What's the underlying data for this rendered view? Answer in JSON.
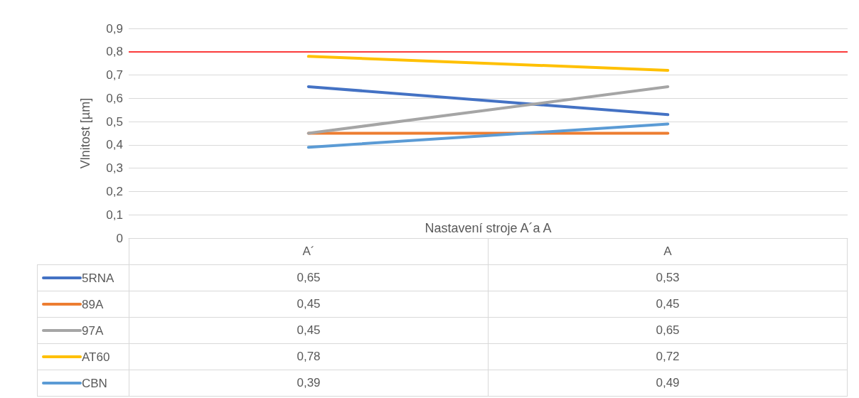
{
  "chart_data": {
    "type": "line",
    "xlabel": "Nastavení stroje A´a A",
    "ylabel": "Vlnitost [µm]",
    "categories": [
      "A´",
      "A"
    ],
    "series": [
      {
        "name": "5RNA",
        "color": "#4472c4",
        "values": [
          0.65,
          0.53
        ],
        "value_labels": [
          "0,65",
          "0,53"
        ]
      },
      {
        "name": "89A",
        "color": "#ed7d31",
        "values": [
          0.45,
          0.45
        ],
        "value_labels": [
          "0,45",
          "0,45"
        ]
      },
      {
        "name": "97A",
        "color": "#a5a5a5",
        "values": [
          0.45,
          0.65
        ],
        "value_labels": [
          "0,45",
          "0,65"
        ]
      },
      {
        "name": "AT60",
        "color": "#ffc000",
        "values": [
          0.78,
          0.72
        ],
        "value_labels": [
          "0,78",
          "0,72"
        ]
      },
      {
        "name": "CBN",
        "color": "#5b9bd5",
        "values": [
          0.39,
          0.49
        ],
        "value_labels": [
          "0,39",
          "0,49"
        ]
      }
    ],
    "ylim": [
      0,
      0.9
    ],
    "yticks": [
      0,
      {
        "value": 0.1,
        "label": "0,1"
      },
      {
        "value": 0.2,
        "label": "0,2"
      },
      {
        "value": 0.3,
        "label": "0,3"
      },
      {
        "value": 0.4,
        "label": "0,4"
      },
      {
        "value": 0.5,
        "label": "0,5"
      },
      {
        "value": 0.6,
        "label": "0,6"
      },
      {
        "value": 0.7,
        "label": "0,7"
      },
      {
        "value": 0.8,
        "label": "0,8"
      },
      {
        "value": 0.9,
        "label": "0,9"
      }
    ],
    "ref_lines": [
      {
        "axis": "y",
        "value": 0.8,
        "color": "#ff0000"
      }
    ],
    "grid": "y",
    "legend": "bottom left",
    "marker": "none",
    "line_style": "solid"
  }
}
